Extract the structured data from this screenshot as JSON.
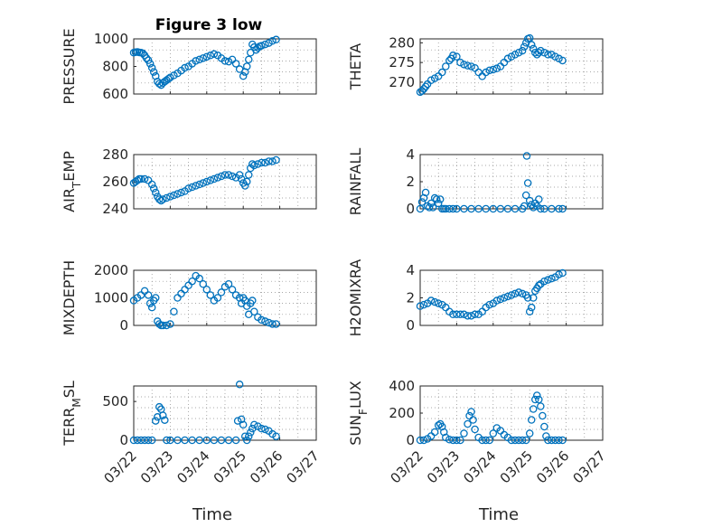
{
  "chart_data": [
    {
      "type": "scatter",
      "title": "Figure 3 low",
      "ylabel": "PRESSURE",
      "ylim": [
        600,
        1000
      ],
      "yticks": [
        600,
        800,
        1000
      ],
      "xlim": [
        0,
        5
      ],
      "xticks": [],
      "xlabel": "",
      "x": [
        0.0,
        0.05,
        0.1,
        0.15,
        0.2,
        0.25,
        0.3,
        0.35,
        0.4,
        0.45,
        0.5,
        0.55,
        0.6,
        0.65,
        0.7,
        0.75,
        0.8,
        0.85,
        0.9,
        0.95,
        1.0,
        1.1,
        1.2,
        1.3,
        1.4,
        1.5,
        1.6,
        1.7,
        1.8,
        1.9,
        2.0,
        2.1,
        2.2,
        2.3,
        2.4,
        2.5,
        2.6,
        2.7,
        2.8,
        2.9,
        3.0,
        3.05,
        3.1,
        3.15,
        3.2,
        3.25,
        3.3,
        3.35,
        3.4,
        3.45,
        3.5,
        3.6,
        3.7,
        3.8,
        3.9
      ],
      "y": [
        900,
        903,
        905,
        902,
        900,
        895,
        880,
        860,
        845,
        820,
        790,
        760,
        730,
        690,
        675,
        665,
        680,
        690,
        700,
        710,
        720,
        735,
        750,
        770,
        790,
        800,
        820,
        840,
        850,
        860,
        870,
        880,
        890,
        880,
        860,
        840,
        835,
        850,
        820,
        780,
        730,
        760,
        800,
        850,
        900,
        960,
        940,
        920,
        935,
        945,
        950,
        960,
        970,
        985,
        995
      ]
    },
    {
      "type": "scatter",
      "title": "",
      "ylabel": "THETA",
      "ylim": [
        267,
        281
      ],
      "yticks": [
        270,
        275,
        280
      ],
      "xlim": [
        0,
        5
      ],
      "xticks": [],
      "xlabel": "",
      "x": [
        0.0,
        0.05,
        0.1,
        0.15,
        0.2,
        0.3,
        0.4,
        0.5,
        0.6,
        0.7,
        0.8,
        0.85,
        0.9,
        1.0,
        1.1,
        1.2,
        1.3,
        1.4,
        1.5,
        1.6,
        1.7,
        1.8,
        1.9,
        2.0,
        2.1,
        2.2,
        2.3,
        2.4,
        2.5,
        2.6,
        2.7,
        2.8,
        2.85,
        2.9,
        2.95,
        3.0,
        3.05,
        3.1,
        3.15,
        3.2,
        3.25,
        3.3,
        3.4,
        3.5,
        3.6,
        3.7,
        3.8,
        3.9
      ],
      "y": [
        267.5,
        267.8,
        268.3,
        268.9,
        269.5,
        270.5,
        271.0,
        271.5,
        272.5,
        274.0,
        275.5,
        276.0,
        276.8,
        276.5,
        275.0,
        274.5,
        274.2,
        274.0,
        273.6,
        272.5,
        271.5,
        272.5,
        273.0,
        273.2,
        273.5,
        274.0,
        275.0,
        276.0,
        276.5,
        277.0,
        277.5,
        278.0,
        279.0,
        280.0,
        281.0,
        281.2,
        279.5,
        278.5,
        277.5,
        277.0,
        277.5,
        278.0,
        277.5,
        277.0,
        277.0,
        276.5,
        276.0,
        275.5
      ]
    },
    {
      "type": "scatter",
      "title": "",
      "ylabel": "AIR_TEMP",
      "ylim": [
        240,
        280
      ],
      "yticks": [
        240,
        260,
        280
      ],
      "xlim": [
        0,
        5
      ],
      "xticks": [],
      "xlabel": "",
      "x": [
        0.0,
        0.05,
        0.1,
        0.15,
        0.2,
        0.3,
        0.4,
        0.5,
        0.55,
        0.6,
        0.65,
        0.7,
        0.75,
        0.8,
        0.9,
        1.0,
        1.1,
        1.2,
        1.3,
        1.4,
        1.5,
        1.6,
        1.7,
        1.8,
        1.9,
        2.0,
        2.1,
        2.2,
        2.3,
        2.4,
        2.5,
        2.6,
        2.7,
        2.8,
        2.9,
        2.95,
        3.0,
        3.05,
        3.1,
        3.15,
        3.2,
        3.25,
        3.3,
        3.4,
        3.5,
        3.6,
        3.7,
        3.8,
        3.9
      ],
      "y": [
        259,
        260,
        261,
        262,
        262,
        262,
        261,
        258,
        255,
        252,
        249,
        247,
        246,
        247,
        248,
        249,
        250,
        251,
        252,
        253,
        255,
        256,
        257,
        258,
        259,
        260,
        261,
        262,
        263,
        264,
        265,
        265,
        264,
        263,
        265,
        262,
        259,
        257,
        260,
        265,
        270,
        273,
        272,
        273,
        274,
        274,
        275,
        275,
        276
      ]
    },
    {
      "type": "scatter",
      "title": "",
      "ylabel": "RAINFALL",
      "ylim": [
        0,
        4
      ],
      "yticks": [
        0,
        2,
        4
      ],
      "xlim": [
        0,
        5
      ],
      "xticks": [],
      "xlabel": "",
      "x": [
        0.0,
        0.05,
        0.1,
        0.15,
        0.2,
        0.25,
        0.3,
        0.35,
        0.4,
        0.45,
        0.5,
        0.55,
        0.6,
        0.65,
        0.7,
        0.8,
        0.9,
        1.0,
        1.2,
        1.4,
        1.6,
        1.8,
        2.0,
        2.2,
        2.4,
        2.6,
        2.8,
        2.85,
        2.9,
        2.92,
        2.95,
        3.0,
        3.05,
        3.1,
        3.15,
        3.2,
        3.25,
        3.3,
        3.4,
        3.6,
        3.8,
        3.9
      ],
      "y": [
        0,
        0.5,
        0.8,
        1.2,
        0.2,
        0.1,
        0.4,
        0.1,
        0.8,
        0.7,
        0.4,
        0.7,
        0,
        0,
        0,
        0,
        0,
        0,
        0,
        0,
        0,
        0,
        0,
        0,
        0,
        0,
        0,
        0.2,
        1.0,
        3.9,
        1.9,
        0.6,
        0.3,
        0.1,
        0.4,
        0.2,
        0.7,
        0,
        0,
        0,
        0,
        0
      ]
    },
    {
      "type": "scatter",
      "title": "",
      "ylabel": "MIXDEPTH",
      "ylim": [
        0,
        2000
      ],
      "yticks": [
        0,
        1000,
        2000
      ],
      "xlim": [
        0,
        5
      ],
      "xticks": [],
      "xlabel": "",
      "x": [
        0.0,
        0.1,
        0.2,
        0.3,
        0.4,
        0.45,
        0.5,
        0.55,
        0.6,
        0.65,
        0.7,
        0.75,
        0.8,
        0.9,
        1.0,
        1.1,
        1.2,
        1.3,
        1.4,
        1.5,
        1.6,
        1.7,
        1.8,
        1.9,
        2.0,
        2.1,
        2.2,
        2.3,
        2.4,
        2.5,
        2.6,
        2.7,
        2.8,
        2.9,
        2.95,
        3.0,
        3.05,
        3.1,
        3.15,
        3.2,
        3.25,
        3.3,
        3.4,
        3.5,
        3.6,
        3.7,
        3.8,
        3.9
      ],
      "y": [
        900,
        1000,
        1100,
        1250,
        1100,
        800,
        650,
        900,
        1000,
        150,
        50,
        0,
        0,
        0,
        50,
        500,
        1000,
        1150,
        1300,
        1450,
        1600,
        1800,
        1700,
        1500,
        1300,
        1100,
        900,
        1000,
        1200,
        1400,
        1500,
        1300,
        1100,
        1000,
        800,
        1000,
        900,
        700,
        400,
        800,
        900,
        500,
        300,
        200,
        150,
        100,
        50,
        50
      ]
    },
    {
      "type": "scatter",
      "title": "",
      "ylabel": "H2OMIXRA",
      "ylim": [
        0,
        4
      ],
      "yticks": [
        0,
        2,
        4
      ],
      "xlim": [
        0,
        5
      ],
      "xticks": [],
      "xlabel": "",
      "x": [
        0.0,
        0.1,
        0.2,
        0.3,
        0.4,
        0.5,
        0.6,
        0.7,
        0.8,
        0.9,
        1.0,
        1.1,
        1.2,
        1.3,
        1.4,
        1.5,
        1.6,
        1.7,
        1.8,
        1.9,
        2.0,
        2.1,
        2.2,
        2.3,
        2.4,
        2.5,
        2.6,
        2.7,
        2.8,
        2.9,
        2.95,
        3.0,
        3.05,
        3.1,
        3.15,
        3.2,
        3.25,
        3.3,
        3.4,
        3.5,
        3.6,
        3.7,
        3.8,
        3.9
      ],
      "y": [
        1.4,
        1.5,
        1.6,
        1.8,
        1.7,
        1.6,
        1.5,
        1.3,
        1.0,
        0.8,
        0.8,
        0.8,
        0.8,
        0.7,
        0.7,
        0.8,
        0.8,
        1.0,
        1.3,
        1.5,
        1.6,
        1.8,
        1.9,
        2.0,
        2.1,
        2.2,
        2.3,
        2.4,
        2.3,
        2.2,
        2.0,
        1.0,
        1.3,
        2.0,
        2.5,
        2.7,
        2.9,
        3.0,
        3.2,
        3.3,
        3.4,
        3.5,
        3.7,
        3.8
      ]
    },
    {
      "type": "scatter",
      "title": "",
      "ylabel": "TERR_MSL",
      "ylim": [
        0,
        700
      ],
      "yticks": [
        0,
        500
      ],
      "xlim": [
        0,
        5
      ],
      "xticks": [
        "03/22",
        "03/23",
        "03/24",
        "03/25",
        "03/26",
        "03/27"
      ],
      "xlabel": "Time",
      "x": [
        0.0,
        0.1,
        0.2,
        0.3,
        0.4,
        0.5,
        0.6,
        0.65,
        0.7,
        0.75,
        0.8,
        0.85,
        0.9,
        1.0,
        1.2,
        1.4,
        1.6,
        1.8,
        2.0,
        2.2,
        2.4,
        2.6,
        2.8,
        2.85,
        2.9,
        2.95,
        3.0,
        3.05,
        3.1,
        3.15,
        3.2,
        3.25,
        3.3,
        3.4,
        3.5,
        3.6,
        3.7,
        3.8,
        3.9
      ],
      "y": [
        0,
        0,
        0,
        0,
        0,
        0,
        250,
        300,
        430,
        400,
        320,
        260,
        0,
        0,
        0,
        0,
        0,
        0,
        0,
        0,
        0,
        0,
        0,
        250,
        720,
        270,
        200,
        50,
        0,
        50,
        100,
        150,
        200,
        180,
        150,
        140,
        120,
        80,
        50
      ]
    },
    {
      "type": "scatter",
      "title": "",
      "ylabel": "SUN_FLUX",
      "ylim": [
        0,
        400
      ],
      "yticks": [
        0,
        200,
        400
      ],
      "xlim": [
        0,
        5
      ],
      "xticks": [
        "03/22",
        "03/23",
        "03/24",
        "03/25",
        "03/26",
        "03/27"
      ],
      "xlabel": "Time",
      "x": [
        0.0,
        0.1,
        0.2,
        0.3,
        0.4,
        0.5,
        0.55,
        0.6,
        0.65,
        0.7,
        0.8,
        0.9,
        1.0,
        1.1,
        1.2,
        1.3,
        1.35,
        1.4,
        1.45,
        1.5,
        1.6,
        1.7,
        1.8,
        1.9,
        2.0,
        2.1,
        2.2,
        2.3,
        2.4,
        2.5,
        2.6,
        2.7,
        2.8,
        2.9,
        3.0,
        3.05,
        3.1,
        3.15,
        3.2,
        3.25,
        3.3,
        3.35,
        3.4,
        3.45,
        3.5,
        3.6,
        3.7,
        3.8,
        3.9
      ],
      "y": [
        0,
        0,
        10,
        30,
        60,
        110,
        120,
        100,
        60,
        20,
        5,
        0,
        0,
        0,
        50,
        120,
        180,
        210,
        150,
        80,
        20,
        0,
        0,
        0,
        50,
        90,
        70,
        40,
        20,
        0,
        0,
        0,
        0,
        0,
        50,
        150,
        230,
        300,
        330,
        300,
        250,
        180,
        100,
        30,
        0,
        0,
        0,
        0,
        0
      ]
    }
  ]
}
